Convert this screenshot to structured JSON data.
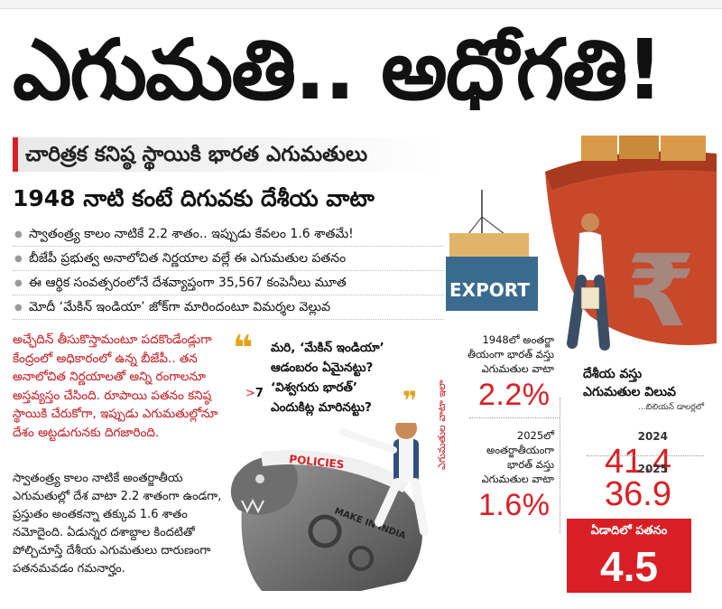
{
  "headline": "ఎగుమతి.. అధోగతి!",
  "subheading": "చారిత్రక కనిష్ఠ స్థాయికి భారత ఎగుమతులు",
  "subheading2": "1948 నాటి కంటే దిగువకు దేశీయ వాటా",
  "bullets": [
    "స్వాతంత్ర్య కాలం నాటికే 2.2 శాతం.. ఇప్పుడు కేవలం 1.6 శాతమే!",
    "బీజేపీ ప్రభుత్వ అనాలోచిత నిర్ణయాల వల్లే ఈ ఎగుమతుల పతనం",
    "ఈ ఆర్థిక సంవత్సరంలోనే దేశవ్యాప్తంగా 35,567 కంపెనీలు మూత",
    "మోదీ ‘మేకిన్ ఇండియా’ జోక్‌గా మారిందంటూ విమర్శల వెల్లువ"
  ],
  "red_paragraph": "అచ్ఛేదిన్ తీసుకొస్తామంటూ పదకొండేండ్లుగా కేంద్రంలో అధికారంలో ఉన్న బీజేపీ.. తన అనాలోచిత నిర్ణయాలతో అన్ని రంగాలనూ అస్తవ్యస్తం చేసింది. రూపాయి పతనం కనిష్ఠ స్థాయికి చేరుకోగా, ఇప్పుడు ఎగుమతుల్లోనూ దేశం అట్టడుగునకు దిగజారింది.",
  "black_paragraph": "స్వాతంత్ర్య కాలం నాటికే అంతర్జాతీయ ఎగుమతుల్లో దేశ వాటా 2.2 శాతంగా ఉండగా, ప్రస్తుతం అంతకన్నా తక్కువ 1.6 శాతం నమోదైంది. ఏడున్నర దశాబ్దాల కిందటితో పోల్చిచూస్తే దేశీయ ఎగుమతులు దారుణంగా పతనమవడం గమనార్హం.",
  "quote": {
    "line1": "మరి, ‘మేకిన్ ఇండియా’",
    "line2": "ఆడంబరం ఏమైనట్టు?",
    "line3": "‘విశ్వగురు భారత్’",
    "line4": "ఎందుకిట్ల మారినట్టు?"
  },
  "page_ref": {
    "arrow": ">",
    "num": "7"
  },
  "illustration": {
    "export_label": "EXPORT",
    "policies_label": "POLICIES",
    "make_in_india_label": "MAKE IN INDIA",
    "rupee_symbol": "₹"
  },
  "share": {
    "side_label": "ఎగుమతుల వాటా ఇలా",
    "y1948_text_line1": "1948లో అంతర్జా",
    "y1948_text_line2": "తీయంగా భారత్ వస్తు",
    "y1948_text_line3": "ఎగుమతుల వాటా",
    "y1948_value": "2.2%",
    "y2025_text_line1": "2025లో",
    "y2025_text_line2": "అంతర్జాతీయంగా",
    "y2025_text_line3": "భారత్ వస్తు",
    "y2025_text_line4": "ఎగుమతుల వాటా",
    "y2025_value": "1.6%"
  },
  "export_value": {
    "heading_line1": "దేశీయ వస్తు",
    "heading_line2": "ఎగుమతుల విలువ",
    "unit_note": "...బిలియన్ డాలర్లలో",
    "year1": "2024",
    "value1": "41.4",
    "year2": "2025",
    "value2": "36.9",
    "fall_label": "ఏడాదిలో పతనం",
    "fall_value": "4.5"
  },
  "colors": {
    "accent": "#d91f26",
    "quote": "#e3a318",
    "ship": "#c8492a"
  }
}
